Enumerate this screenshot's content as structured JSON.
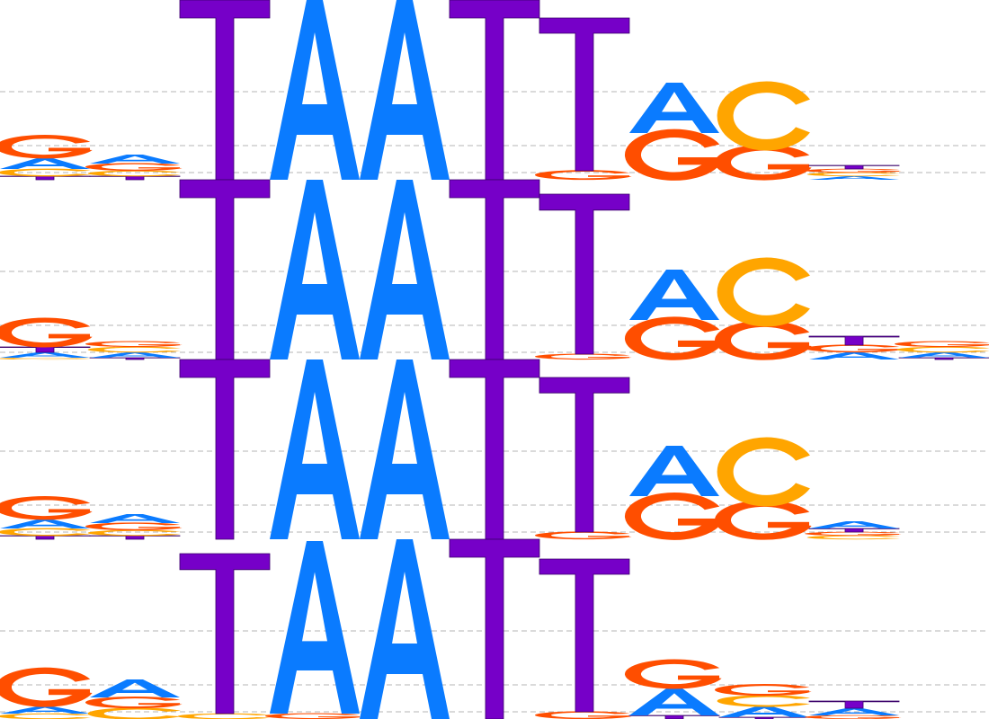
{
  "colors": {
    "A": "#0a7bff",
    "C": "#ffa500",
    "G": "#ff4e00",
    "T": "#7600c8",
    "gridline": "#b4b4b4",
    "background": "#ffffff"
  },
  "logos": [
    {
      "positions": [
        {
          "A": 0.06,
          "C": 0.04,
          "G": 0.12,
          "T": 0.02
        },
        {
          "A": 0.05,
          "C": 0.03,
          "G": 0.04,
          "T": 0.02
        },
        {
          "A": 0.0,
          "C": 0.0,
          "G": 0.0,
          "T": 1.0
        },
        {
          "A": 1.0,
          "C": 0.0,
          "G": 0.0,
          "T": 0.0
        },
        {
          "A": 1.0,
          "C": 0.0,
          "G": 0.0,
          "T": 0.0
        },
        {
          "A": 0.0,
          "C": 0.0,
          "G": 0.0,
          "T": 1.0
        },
        {
          "A": 0.0,
          "C": 0.0,
          "G": 0.05,
          "T": 0.85
        },
        {
          "A": 0.28,
          "C": 0.0,
          "G": 0.26,
          "T": 0.0
        },
        {
          "A": 0.0,
          "C": 0.35,
          "G": 0.18,
          "T": 0.0
        },
        {
          "A": 0.02,
          "C": 0.02,
          "G": 0.02,
          "T": 0.02
        }
      ]
    },
    {
      "positions": [
        {
          "A": 0.03,
          "C": 0.01,
          "G": 0.15,
          "T": 0.03
        },
        {
          "A": 0.03,
          "C": 0.03,
          "G": 0.03,
          "T": 0.01
        },
        {
          "A": 0.0,
          "C": 0.0,
          "G": 0.0,
          "T": 1.0
        },
        {
          "A": 1.0,
          "C": 0.0,
          "G": 0.0,
          "T": 0.0
        },
        {
          "A": 1.0,
          "C": 0.0,
          "G": 0.0,
          "T": 0.0
        },
        {
          "A": 0.0,
          "C": 0.0,
          "G": 0.0,
          "T": 1.0
        },
        {
          "A": 0.0,
          "C": 0.0,
          "G": 0.03,
          "T": 0.89
        },
        {
          "A": 0.28,
          "C": 0.0,
          "G": 0.22,
          "T": 0.0
        },
        {
          "A": 0.0,
          "C": 0.35,
          "G": 0.2,
          "T": 0.0
        },
        {
          "A": 0.04,
          "C": 0.0,
          "G": 0.04,
          "T": 0.05
        },
        {
          "A": 0.03,
          "C": 0.03,
          "G": 0.03,
          "T": 0.01
        }
      ]
    },
    {
      "positions": [
        {
          "A": 0.05,
          "C": 0.04,
          "G": 0.12,
          "T": 0.02
        },
        {
          "A": 0.05,
          "C": 0.03,
          "G": 0.04,
          "T": 0.02
        },
        {
          "A": 0.0,
          "C": 0.0,
          "G": 0.0,
          "T": 1.0
        },
        {
          "A": 1.0,
          "C": 0.0,
          "G": 0.0,
          "T": 0.0
        },
        {
          "A": 1.0,
          "C": 0.0,
          "G": 0.0,
          "T": 0.0
        },
        {
          "A": 0.0,
          "C": 0.0,
          "G": 0.0,
          "T": 1.0
        },
        {
          "A": 0.0,
          "C": 0.0,
          "G": 0.04,
          "T": 0.86
        },
        {
          "A": 0.28,
          "C": 0.0,
          "G": 0.24,
          "T": 0.0
        },
        {
          "A": 0.0,
          "C": 0.35,
          "G": 0.2,
          "T": 0.0
        },
        {
          "A": 0.04,
          "C": 0.02,
          "G": 0.02,
          "T": 0.02
        }
      ]
    },
    {
      "positions": [
        {
          "A": 0.04,
          "C": 0.03,
          "G": 0.2,
          "T": 0.0
        },
        {
          "A": 0.1,
          "C": 0.06,
          "G": 0.06,
          "T": 0.0
        },
        {
          "A": 0.0,
          "C": 0.03,
          "G": 0.0,
          "T": 0.89
        },
        {
          "A": 0.96,
          "C": 0.0,
          "G": 0.03,
          "T": 0.0
        },
        {
          "A": 1.0,
          "C": 0.0,
          "G": 0.0,
          "T": 0.0
        },
        {
          "A": 0.0,
          "C": 0.0,
          "G": 0.0,
          "T": 1.0
        },
        {
          "A": 0.0,
          "C": 0.0,
          "G": 0.04,
          "T": 0.85
        },
        {
          "A": 0.15,
          "C": 0.0,
          "G": 0.15,
          "T": 0.02
        },
        {
          "A": 0.06,
          "C": 0.06,
          "G": 0.06,
          "T": 0.01
        },
        {
          "A": 0.04,
          "C": 0.0,
          "G": 0.02,
          "T": 0.04
        }
      ]
    }
  ]
}
